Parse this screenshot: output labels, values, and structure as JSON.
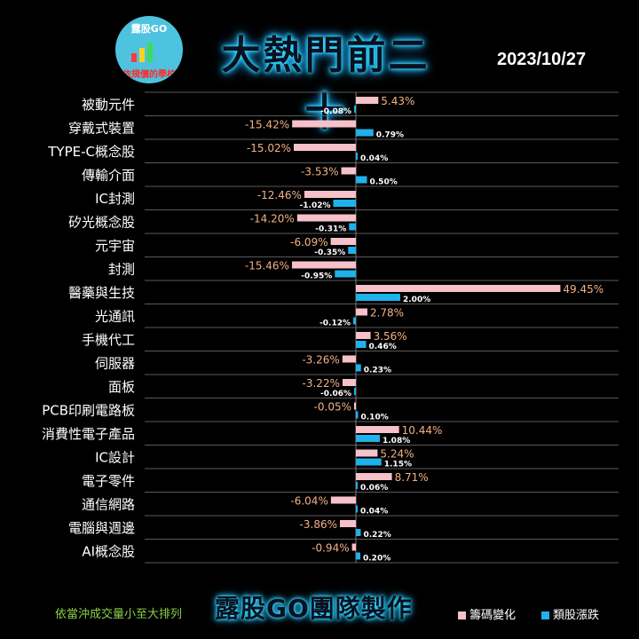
{
  "header": {
    "logo_brand": "露股GO",
    "logo_slogan": "依規價的學校",
    "title": "大熱門前二十",
    "date": "2023/10/27"
  },
  "footer": {
    "sort_note": "依當沖成交量小至大排列",
    "team": "露股GO團隊製作"
  },
  "colors": {
    "chip_change": "#f7c1c9",
    "sector_change": "#1fb1e9",
    "label_pink": "#f4b183"
  },
  "chart_data": {
    "type": "bar",
    "orientation": "horizontal",
    "xlim": [
      -17,
      50
    ],
    "series": [
      {
        "name": "籌碼變化",
        "values": [
          5.43,
          -15.42,
          -15.02,
          -3.53,
          -12.46,
          -14.2,
          -6.09,
          -15.46,
          49.45,
          2.78,
          3.56,
          -3.26,
          -3.22,
          -0.05,
          10.44,
          5.24,
          8.71,
          -6.04,
          -3.86,
          -0.94
        ],
        "labels": [
          "5.43%",
          "-15.42%",
          "-15.02%",
          "-3.53%",
          "-12.46%",
          "-14.20%",
          "-6.09%",
          "-15.46%",
          "49.45%",
          "2.78%",
          "3.56%",
          "-3.26%",
          "-3.22%",
          "-0.05%",
          "10.44%",
          "5.24%",
          "8.71%",
          "-6.04%",
          "-3.86%",
          "-0.94%"
        ]
      },
      {
        "name": "類股漲跌",
        "values": [
          -0.08,
          0.79,
          0.04,
          0.5,
          -1.02,
          -0.31,
          -0.35,
          -0.95,
          2.0,
          -0.12,
          0.46,
          0.23,
          -0.06,
          0.1,
          1.08,
          1.15,
          0.06,
          0.04,
          0.22,
          0.2
        ],
        "labels": [
          "-0.08%",
          "0.79%",
          "0.04%",
          "0.50%",
          "-1.02%",
          "-0.31%",
          "-0.35%",
          "-0.95%",
          "2.00%",
          "-0.12%",
          "0.46%",
          "0.23%",
          "-0.06%",
          "0.10%",
          "1.08%",
          "1.15%",
          "0.06%",
          "0.04%",
          "0.22%",
          "0.20%"
        ]
      }
    ],
    "categories": [
      "被動元件",
      "穿戴式裝置",
      "TYPE-C概念股",
      "傳輸介面",
      "IC封測",
      "矽光概念股",
      "元宇宙",
      "封測",
      "醫藥與生技",
      "光通訊",
      "手機代工",
      "伺服器",
      "面板",
      "PCB印刷電路板",
      "消費性電子產品",
      "IC設計",
      "電子零件",
      "通信網路",
      "電腦與週邊",
      "AI概念股"
    ],
    "legend": [
      "籌碼變化",
      "類股漲跌"
    ],
    "legend_position": "bottom-right",
    "grid": true
  }
}
